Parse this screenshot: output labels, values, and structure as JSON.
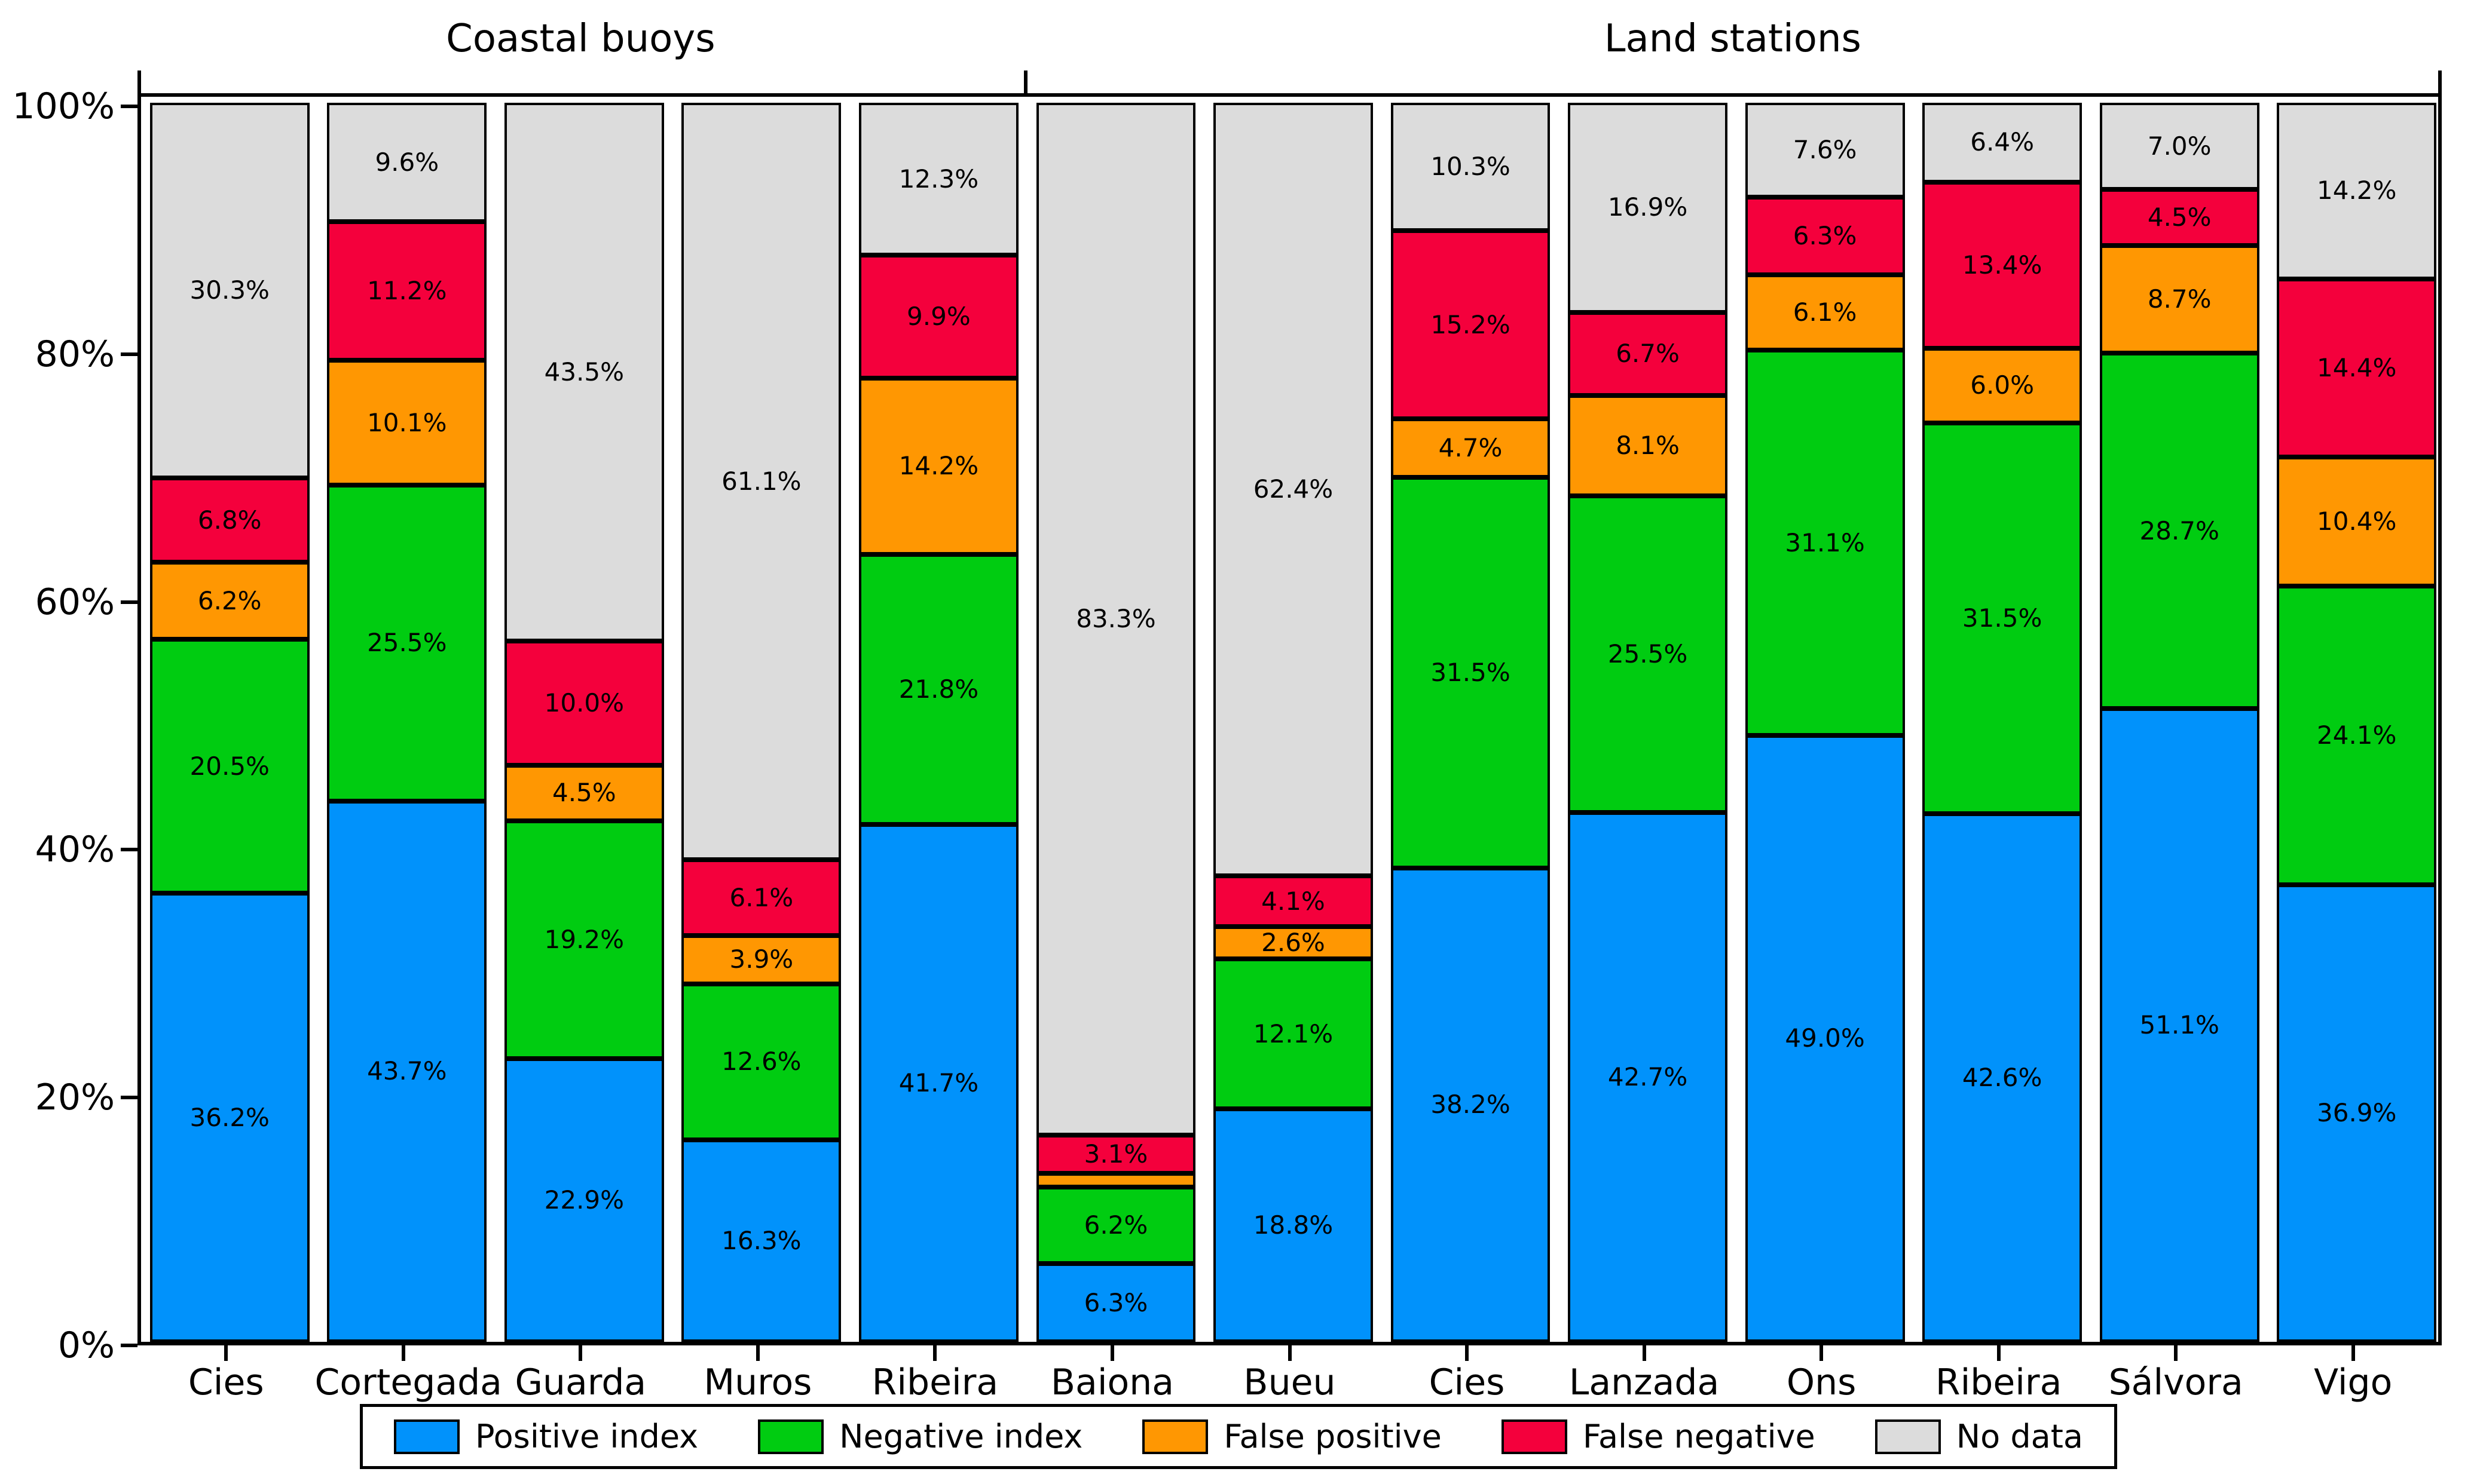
{
  "chart_data": {
    "type": "bar",
    "stacked": true,
    "orientation": "vertical",
    "title": "",
    "xlabel": "",
    "ylabel": "",
    "ylim": [
      0,
      100
    ],
    "grid": false,
    "legend_position": "bottom",
    "y_tick_values": [
      0,
      20,
      40,
      60,
      80,
      100
    ],
    "y_tick_labels": [
      "0%",
      "20%",
      "40%",
      "60%",
      "80%",
      "100%"
    ],
    "groups": [
      {
        "label": "Coastal buoys",
        "span": 5
      },
      {
        "label": "Land stations",
        "span": 8
      }
    ],
    "categories": [
      "Cies",
      "Cortegada",
      "Guarda",
      "Muros",
      "Ribeira",
      "Baiona",
      "Bueu",
      "Cies",
      "Lanzada",
      "Ons",
      "Ribeira",
      "Sálvora",
      "Vigo"
    ],
    "series": [
      {
        "name": "Positive index",
        "color": "#0192FB",
        "values": [
          36.2,
          43.7,
          22.9,
          16.3,
          41.7,
          6.3,
          18.8,
          38.2,
          42.7,
          49.0,
          42.6,
          51.1,
          36.9
        ]
      },
      {
        "name": "Negative index",
        "color": "#00CC11",
        "values": [
          20.5,
          25.5,
          19.2,
          12.6,
          21.8,
          6.2,
          12.1,
          31.5,
          25.5,
          31.1,
          31.5,
          28.7,
          24.1
        ]
      },
      {
        "name": "False positive",
        "color": "#FF9702",
        "values": [
          6.2,
          10.1,
          4.5,
          3.9,
          14.2,
          1.1,
          2.6,
          4.7,
          8.1,
          6.1,
          6.0,
          8.7,
          10.4
        ]
      },
      {
        "name": "False negative",
        "color": "#F4003C",
        "values": [
          6.8,
          11.2,
          10.0,
          6.1,
          9.9,
          3.1,
          4.1,
          15.2,
          6.7,
          6.3,
          13.4,
          4.5,
          14.4
        ]
      },
      {
        "name": "No data",
        "color": "#DCDCDC",
        "values": [
          30.3,
          9.6,
          43.5,
          61.1,
          12.3,
          83.3,
          62.4,
          10.3,
          16.9,
          7.6,
          6.4,
          7.0,
          14.2
        ]
      }
    ],
    "value_label_suffix": "%",
    "value_label_min": 2.0
  }
}
